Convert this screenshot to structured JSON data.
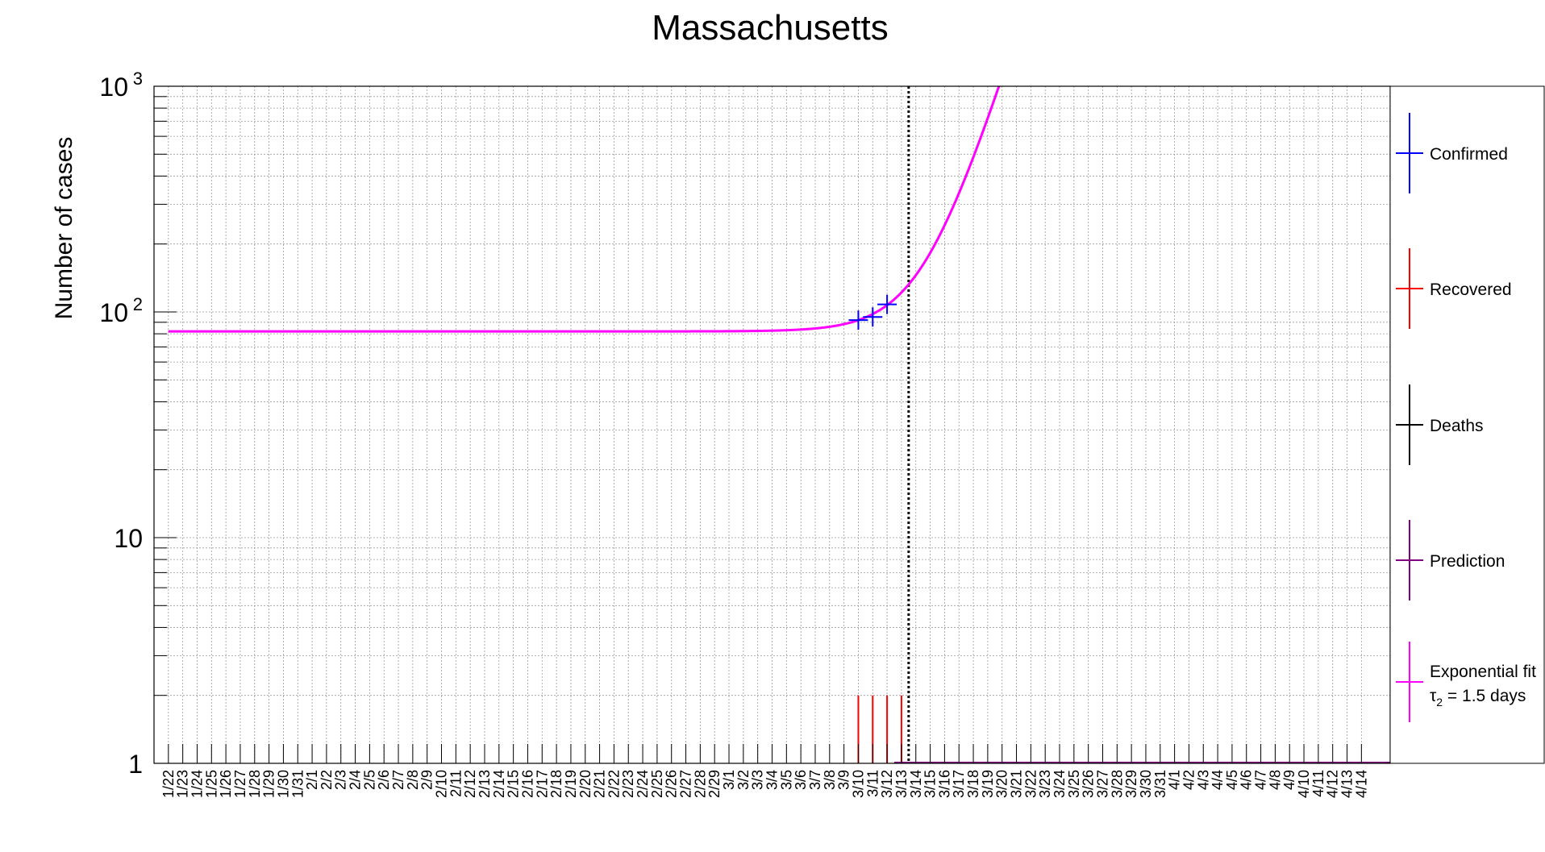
{
  "chart_data": {
    "type": "line",
    "title": "Massachusetts",
    "xlabel": "",
    "ylabel": "Number of cases",
    "yscale": "log",
    "ylim": [
      1,
      1000
    ],
    "y_ticks": [
      {
        "value": 1,
        "label": "1"
      },
      {
        "value": 10,
        "label": "10"
      },
      {
        "value": 100,
        "base": "10",
        "exp": "2"
      },
      {
        "value": 1000,
        "base": "10",
        "exp": "3"
      }
    ],
    "grid": true,
    "categories": [
      "1/22",
      "1/23",
      "1/24",
      "1/25",
      "1/26",
      "1/27",
      "1/28",
      "1/29",
      "1/30",
      "1/31",
      "2/1",
      "2/2",
      "2/3",
      "2/4",
      "2/5",
      "2/6",
      "2/7",
      "2/8",
      "2/9",
      "2/10",
      "2/11",
      "2/12",
      "2/13",
      "2/14",
      "2/15",
      "2/16",
      "2/17",
      "2/18",
      "2/19",
      "2/20",
      "2/21",
      "2/22",
      "2/23",
      "2/24",
      "2/25",
      "2/26",
      "2/27",
      "2/28",
      "2/29",
      "3/1",
      "3/2",
      "3/3",
      "3/4",
      "3/5",
      "3/6",
      "3/7",
      "3/8",
      "3/9",
      "3/10",
      "3/11",
      "3/12",
      "3/13",
      "3/14",
      "3/15",
      "3/16",
      "3/17",
      "3/18",
      "3/19",
      "3/20",
      "3/21",
      "3/22",
      "3/23",
      "3/24",
      "3/25",
      "3/26",
      "3/27",
      "3/28",
      "3/29",
      "3/30",
      "3/31",
      "4/1",
      "4/2",
      "4/3",
      "4/4",
      "4/5",
      "4/6",
      "4/7",
      "4/8",
      "4/9",
      "4/10",
      "4/11",
      "4/12",
      "4/13",
      "4/14"
    ],
    "vertical_marker": {
      "x": "3/13",
      "style": "dotted",
      "color": "#000000"
    },
    "series": [
      {
        "name": "Confirmed",
        "color": "#0000ff",
        "kind": "points",
        "x": [
          "3/10",
          "3/11",
          "3/12"
        ],
        "y": [
          92,
          95,
          108
        ]
      },
      {
        "name": "Recovered",
        "color": "#ff0000",
        "kind": "bars",
        "x": [
          "3/10",
          "3/11",
          "3/12",
          "3/13"
        ],
        "y": [
          2,
          2,
          2,
          2
        ]
      },
      {
        "name": "Deaths",
        "color": "#000000",
        "kind": "none",
        "x": [],
        "y": []
      },
      {
        "name": "Prediction",
        "color": "#800080",
        "kind": "baseline",
        "x_start": "3/13",
        "x_end": "4/14",
        "y": 1
      },
      {
        "name": "Exponential fit",
        "color": "#ff00ff",
        "kind": "curve",
        "model": {
          "plateau": 82,
          "amplitude": 10,
          "x0": "3/10",
          "doubling_days": 1.5
        }
      }
    ],
    "legend": {
      "placement": "right",
      "entries": [
        {
          "label": "Confirmed",
          "color": "#0000ff"
        },
        {
          "label": "Recovered",
          "color": "#ff0000"
        },
        {
          "label": "Deaths",
          "color": "#000000"
        },
        {
          "label": "Prediction",
          "color": "#800080"
        },
        {
          "label": "Exponential fit",
          "color": "#ff00ff",
          "sub_label": {
            "symbol": "τ",
            "subscript": "2",
            "text": " = 1.5 days"
          }
        }
      ]
    }
  }
}
